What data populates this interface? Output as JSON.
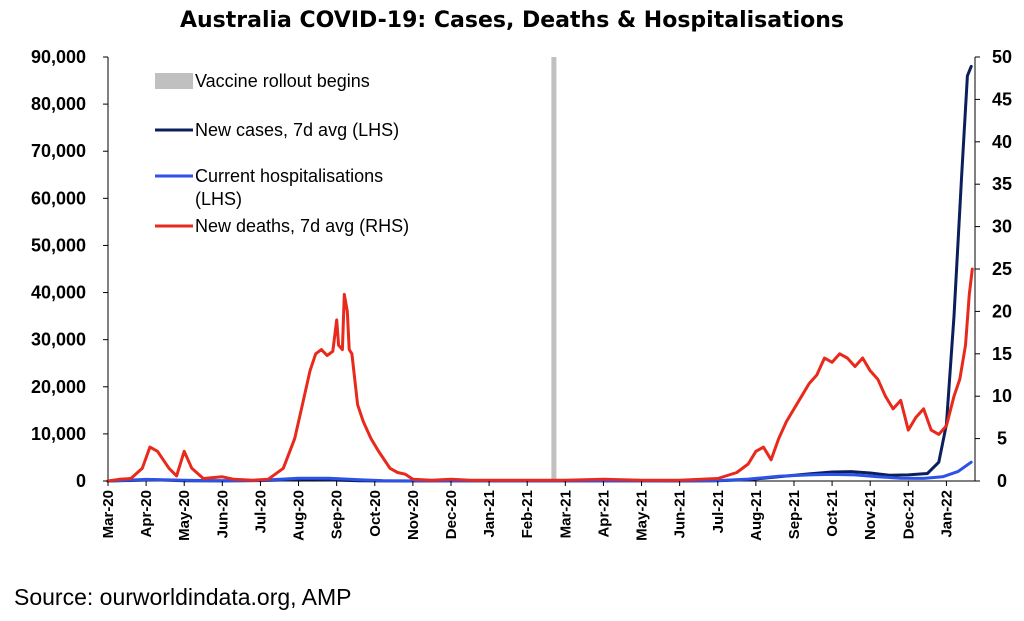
{
  "chart_data": {
    "type": "line",
    "title": "Australia COVID-19: Cases, Deaths & Hospitalisations",
    "x_tick_labels": [
      "Mar-20",
      "Apr-20",
      "May-20",
      "Jun-20",
      "Jul-20",
      "Aug-20",
      "Sep-20",
      "Oct-20",
      "Nov-20",
      "Dec-20",
      "Jan-21",
      "Feb-21",
      "Mar-21",
      "Apr-21",
      "May-21",
      "Jun-21",
      "Jul-21",
      "Aug-21",
      "Sep-21",
      "Oct-21",
      "Nov-21",
      "Dec-21",
      "Jan-22"
    ],
    "y_left": {
      "lim": [
        0,
        90000
      ],
      "ticks": [
        "0",
        "10,000",
        "20,000",
        "30,000",
        "40,000",
        "50,000",
        "60,000",
        "70,000",
        "80,000",
        "90,000"
      ]
    },
    "y_right": {
      "lim": [
        0,
        50
      ],
      "ticks": [
        "0",
        "5",
        "10",
        "15",
        "20",
        "25",
        "30",
        "35",
        "40",
        "45",
        "50"
      ]
    },
    "x_unit": "months since Mar-20",
    "vaccine_rollout_x": 11.7,
    "legend": [
      {
        "label": "Vaccine rollout begins",
        "color": "#c0c0c0",
        "kind": "bar"
      },
      {
        "label": "New cases, 7d avg (LHS)",
        "color": "#0b1f5c",
        "kind": "line"
      },
      {
        "label": "Current hospitalisations\n(LHS)",
        "color": "#2c52e8",
        "kind": "line"
      },
      {
        "label": "New deaths, 7d avg (RHS)",
        "color": "#e8291c",
        "kind": "line"
      }
    ],
    "series": [
      {
        "name": "New cases, 7d avg (LHS)",
        "color": "#0b1f5c",
        "axis": "left",
        "points": [
          [
            0,
            0
          ],
          [
            0.8,
            150
          ],
          [
            1.2,
            250
          ],
          [
            2,
            60
          ],
          [
            3,
            20
          ],
          [
            4,
            80
          ],
          [
            4.8,
            300
          ],
          [
            5.3,
            400
          ],
          [
            6,
            200
          ],
          [
            6.6,
            60
          ],
          [
            7,
            20
          ],
          [
            8,
            5
          ],
          [
            9,
            5
          ],
          [
            10,
            10
          ],
          [
            11,
            5
          ],
          [
            12,
            5
          ],
          [
            13,
            5
          ],
          [
            14,
            5
          ],
          [
            15,
            10
          ],
          [
            16,
            60
          ],
          [
            16.8,
            300
          ],
          [
            17.6,
            900
          ],
          [
            18.4,
            1500
          ],
          [
            19,
            1900
          ],
          [
            19.5,
            2000
          ],
          [
            20,
            1700
          ],
          [
            20.5,
            1200
          ],
          [
            21,
            1300
          ],
          [
            21.5,
            1600
          ],
          [
            21.8,
            4000
          ],
          [
            22.0,
            12000
          ],
          [
            22.2,
            35000
          ],
          [
            22.4,
            65000
          ],
          [
            22.55,
            86000
          ],
          [
            22.65,
            88000
          ]
        ]
      },
      {
        "name": "Current hospitalisations\n(LHS)",
        "color": "#2c52e8",
        "axis": "left",
        "points": [
          [
            0,
            0
          ],
          [
            1,
            350
          ],
          [
            2,
            150
          ],
          [
            3,
            50
          ],
          [
            4,
            120
          ],
          [
            5,
            600
          ],
          [
            5.8,
            600
          ],
          [
            6.6,
            250
          ],
          [
            7.2,
            60
          ],
          [
            8,
            20
          ],
          [
            9,
            10
          ],
          [
            10,
            10
          ],
          [
            11,
            10
          ],
          [
            12,
            10
          ],
          [
            13,
            10
          ],
          [
            14,
            10
          ],
          [
            15,
            20
          ],
          [
            16,
            80
          ],
          [
            16.8,
            400
          ],
          [
            17.6,
            1000
          ],
          [
            18.4,
            1300
          ],
          [
            19,
            1400
          ],
          [
            19.6,
            1300
          ],
          [
            20.2,
            900
          ],
          [
            20.8,
            600
          ],
          [
            21.4,
            550
          ],
          [
            21.9,
            900
          ],
          [
            22.3,
            2000
          ],
          [
            22.65,
            4000
          ]
        ]
      },
      {
        "name": "New deaths, 7d avg (RHS)",
        "color": "#e8291c",
        "axis": "right",
        "points": [
          [
            0,
            0
          ],
          [
            0.3,
            0.2
          ],
          [
            0.6,
            0.3
          ],
          [
            0.9,
            1.5
          ],
          [
            1.1,
            4.0
          ],
          [
            1.3,
            3.5
          ],
          [
            1.6,
            1.5
          ],
          [
            1.8,
            0.6
          ],
          [
            2.0,
            3.5
          ],
          [
            2.2,
            1.5
          ],
          [
            2.5,
            0.3
          ],
          [
            3.0,
            0.5
          ],
          [
            3.3,
            0.2
          ],
          [
            3.8,
            0.1
          ],
          [
            4.2,
            0.2
          ],
          [
            4.6,
            1.5
          ],
          [
            4.9,
            5.0
          ],
          [
            5.1,
            9.0
          ],
          [
            5.3,
            13.0
          ],
          [
            5.45,
            15.0
          ],
          [
            5.6,
            15.5
          ],
          [
            5.75,
            14.8
          ],
          [
            5.9,
            15.3
          ],
          [
            6.0,
            19.0
          ],
          [
            6.05,
            16.0
          ],
          [
            6.15,
            15.5
          ],
          [
            6.2,
            22.0
          ],
          [
            6.28,
            20.0
          ],
          [
            6.33,
            15.5
          ],
          [
            6.4,
            15.0
          ],
          [
            6.55,
            9.0
          ],
          [
            6.7,
            7.0
          ],
          [
            6.9,
            5.0
          ],
          [
            7.1,
            3.5
          ],
          [
            7.4,
            1.5
          ],
          [
            7.6,
            1.0
          ],
          [
            7.8,
            0.8
          ],
          [
            8.0,
            0.2
          ],
          [
            8.5,
            0.1
          ],
          [
            9.0,
            0.2
          ],
          [
            9.5,
            0.1
          ],
          [
            10,
            0.1
          ],
          [
            11,
            0.1
          ],
          [
            12,
            0.1
          ],
          [
            13,
            0.2
          ],
          [
            14,
            0.1
          ],
          [
            15,
            0.1
          ],
          [
            16,
            0.3
          ],
          [
            16.5,
            1.0
          ],
          [
            16.8,
            2.0
          ],
          [
            17.0,
            3.5
          ],
          [
            17.2,
            4.0
          ],
          [
            17.4,
            2.5
          ],
          [
            17.6,
            5.0
          ],
          [
            17.8,
            7.0
          ],
          [
            18.0,
            8.5
          ],
          [
            18.2,
            10.0
          ],
          [
            18.4,
            11.5
          ],
          [
            18.6,
            12.5
          ],
          [
            18.8,
            14.5
          ],
          [
            19.0,
            14.0
          ],
          [
            19.2,
            15.0
          ],
          [
            19.4,
            14.5
          ],
          [
            19.6,
            13.5
          ],
          [
            19.8,
            14.5
          ],
          [
            20.0,
            13.0
          ],
          [
            20.2,
            12.0
          ],
          [
            20.4,
            10.0
          ],
          [
            20.6,
            8.5
          ],
          [
            20.8,
            9.5
          ],
          [
            21.0,
            6.0
          ],
          [
            21.2,
            7.5
          ],
          [
            21.4,
            8.5
          ],
          [
            21.6,
            6.0
          ],
          [
            21.8,
            5.5
          ],
          [
            22.0,
            6.5
          ],
          [
            22.2,
            10.0
          ],
          [
            22.35,
            12.0
          ],
          [
            22.5,
            16.0
          ],
          [
            22.6,
            22.0
          ],
          [
            22.68,
            25.0
          ]
        ]
      }
    ]
  },
  "source": "Source: ourworldindata.org, AMP"
}
